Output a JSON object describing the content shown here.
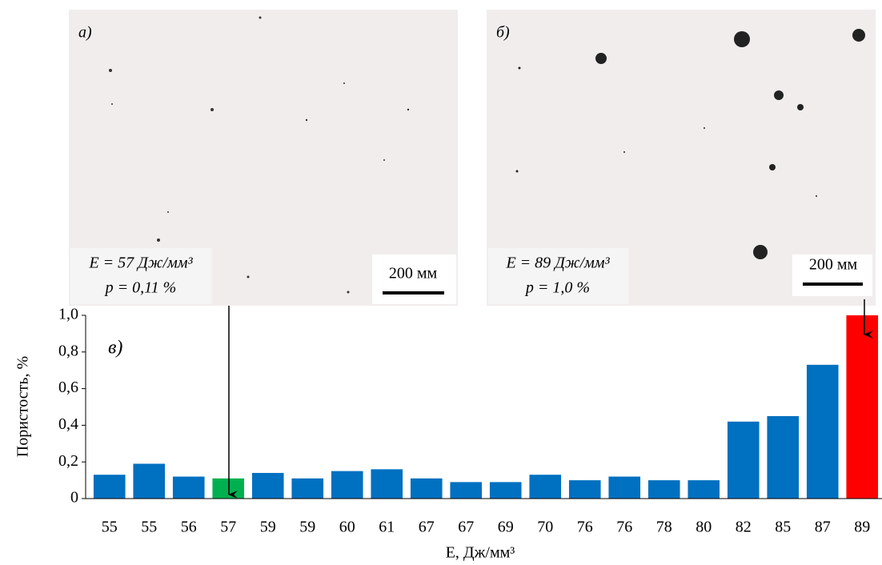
{
  "images": [
    {
      "label": "а)",
      "energy_text": "E = 57 Дж/мм³",
      "porosity_text": "p = 0,11 %",
      "scale_text": "200 мм"
    },
    {
      "label": "б)",
      "energy_text": "E = 89 Дж/мм³",
      "porosity_text": "p = 1,0 %",
      "scale_text": "200 мм"
    }
  ],
  "chart_data": {
    "type": "bar",
    "panel_label": "в)",
    "y_label": "Пористость, %",
    "x_label": "E, Дж/мм³",
    "categories": [
      "55",
      "55",
      "56",
      "57",
      "59",
      "59",
      "60",
      "61",
      "67",
      "67",
      "69",
      "70",
      "76",
      "76",
      "78",
      "80",
      "82",
      "85",
      "87",
      "89"
    ],
    "values": [
      0.13,
      0.19,
      0.12,
      0.11,
      0.14,
      0.11,
      0.15,
      0.16,
      0.11,
      0.09,
      0.09,
      0.13,
      0.1,
      0.12,
      0.1,
      0.1,
      0.42,
      0.45,
      0.73,
      1.0
    ],
    "colors": [
      "#0070c0",
      "#0070c0",
      "#0070c0",
      "#00b050",
      "#0070c0",
      "#0070c0",
      "#0070c0",
      "#0070c0",
      "#0070c0",
      "#0070c0",
      "#0070c0",
      "#0070c0",
      "#0070c0",
      "#0070c0",
      "#0070c0",
      "#0070c0",
      "#0070c0",
      "#0070c0",
      "#0070c0",
      "#ff0000"
    ],
    "ylim": [
      0,
      1
    ],
    "yticks": [
      0,
      {
        "value": 0.2,
        "label": "0,2"
      },
      {
        "value": 0.4,
        "label": "0,4"
      },
      {
        "value": 0.6,
        "label": "0,6"
      },
      {
        "value": 0.8,
        "label": "0,8"
      },
      {
        "value": 1,
        "label": "1,0"
      }
    ]
  }
}
